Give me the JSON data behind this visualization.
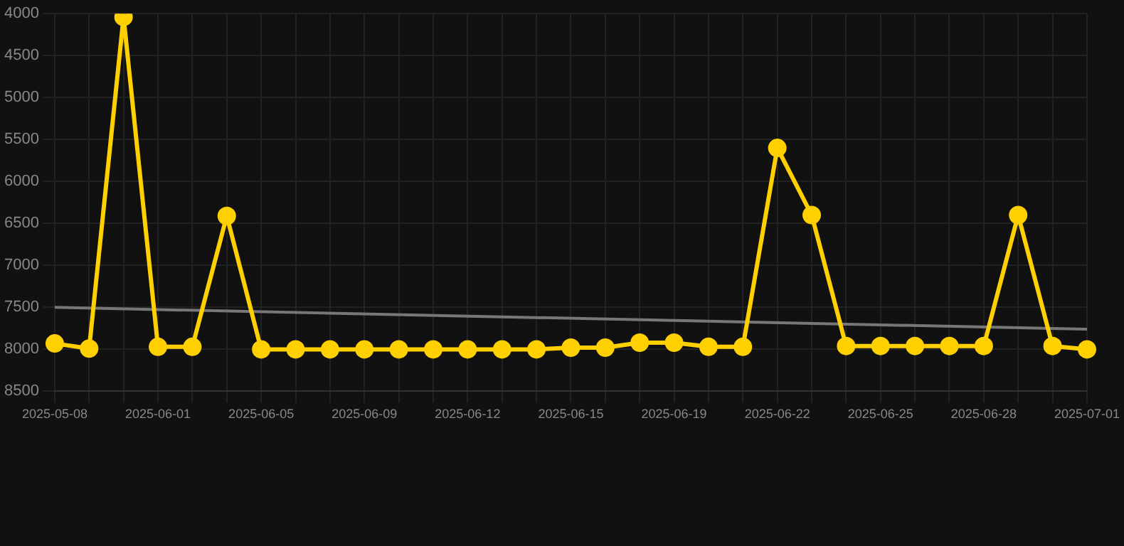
{
  "chart_data": {
    "type": "line",
    "categories": [
      "2025-05-08",
      null,
      null,
      "2025-06-01",
      null,
      null,
      "2025-06-05",
      null,
      null,
      "2025-06-09",
      null,
      null,
      "2025-06-12",
      null,
      null,
      "2025-06-15",
      null,
      null,
      "2025-06-19",
      null,
      null,
      "2025-06-22",
      null,
      null,
      "2025-06-25",
      null,
      null,
      "2025-06-28",
      null,
      null,
      "2025-07-01"
    ],
    "series": [
      {
        "color": "#ffd000",
        "marker": "circle",
        "values": [
          7930,
          7990,
          4040,
          7970,
          7970,
          6410,
          8000,
          8000,
          8000,
          8000,
          8000,
          8000,
          8000,
          8000,
          8000,
          7980,
          7980,
          7920,
          7920,
          7970,
          7970,
          5600,
          6400,
          7960,
          7960,
          7960,
          7960,
          7960,
          6400,
          7960,
          8000
        ]
      },
      {
        "color": "#777777",
        "marker": "none",
        "values": [
          7500,
          null,
          null,
          null,
          null,
          null,
          null,
          null,
          null,
          null,
          null,
          null,
          null,
          null,
          null,
          null,
          null,
          null,
          null,
          null,
          null,
          null,
          null,
          null,
          null,
          null,
          null,
          null,
          null,
          null,
          7760
        ]
      }
    ],
    "ylim": [
      8500,
      4000
    ],
    "yticks": [
      4000,
      4500,
      5000,
      5500,
      6000,
      6500,
      7000,
      7500,
      8000,
      8500
    ],
    "grid": true,
    "legend": false
  }
}
